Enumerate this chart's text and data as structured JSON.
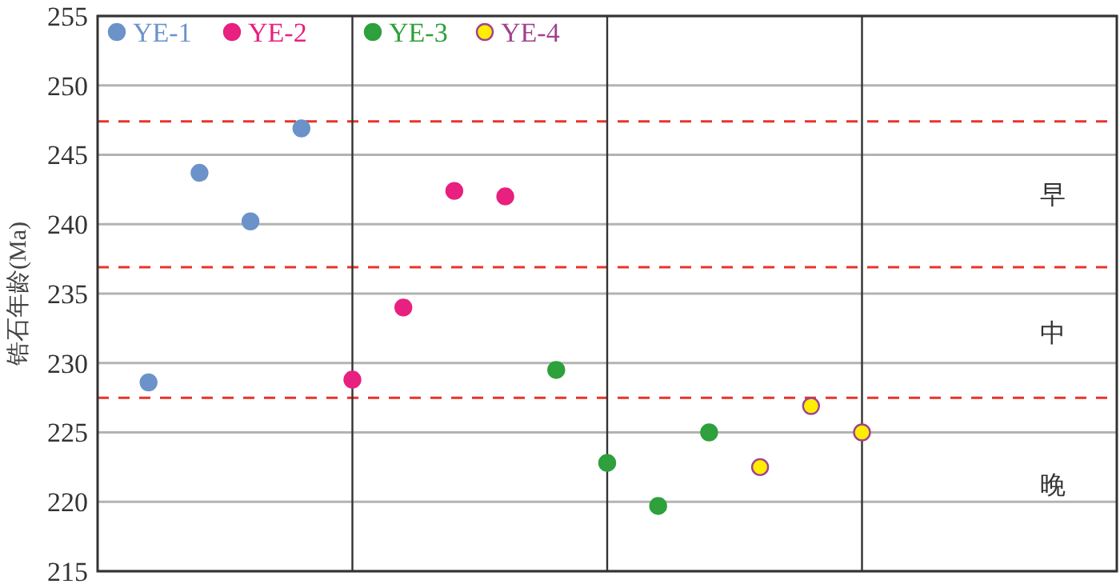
{
  "chart_data": {
    "type": "scatter",
    "ylabel": "锆石年龄(Ma)",
    "categories": [
      null,
      null,
      null,
      null,
      null,
      null,
      null,
      null,
      null,
      null,
      null,
      null,
      null,
      null,
      null,
      null,
      null,
      null,
      null
    ],
    "series": [
      {
        "name": "YE-1",
        "color": "#6b93c9",
        "values": [
          228.6,
          243.7,
          240.2,
          246.9,
          null,
          null,
          null,
          null,
          null,
          null,
          null,
          null,
          null,
          null,
          null,
          null,
          null,
          null,
          null
        ]
      },
      {
        "name": "YE-2",
        "color": "#e8207f",
        "values": [
          null,
          null,
          null,
          null,
          228.8,
          234.0,
          242.4,
          242.0,
          null,
          null,
          null,
          null,
          null,
          null,
          null,
          null,
          null,
          null,
          null
        ]
      },
      {
        "name": "YE-3",
        "color": "#2ea03c",
        "values": [
          null,
          null,
          null,
          null,
          null,
          null,
          null,
          null,
          229.5,
          222.8,
          219.7,
          225.0,
          null,
          null,
          null,
          null,
          null,
          null,
          null
        ]
      },
      {
        "name": "YE-4",
        "color": "#ffee00",
        "values": [
          null,
          null,
          null,
          null,
          null,
          null,
          null,
          null,
          null,
          null,
          null,
          null,
          222.5,
          226.9,
          225.0,
          null,
          null,
          null,
          null
        ]
      }
    ],
    "ylim": [
      215,
      255
    ],
    "yticks": [
      215,
      220,
      225,
      230,
      235,
      240,
      245,
      250,
      255
    ],
    "tick_labels": "y",
    "grid": "y",
    "legend": "top left",
    "marker": "circle",
    "ref_lines": [
      {
        "axis": "y",
        "value": 247.4,
        "color": "#e8342a",
        "line_style": "dashed"
      },
      {
        "axis": "y",
        "value": 236.9,
        "color": "#e8342a",
        "line_style": "dashed"
      },
      {
        "axis": "y",
        "value": 227.5,
        "color": "#e8342a",
        "line_style": "dashed"
      }
    ],
    "annotations": [
      "早",
      "中",
      "晚"
    ]
  }
}
